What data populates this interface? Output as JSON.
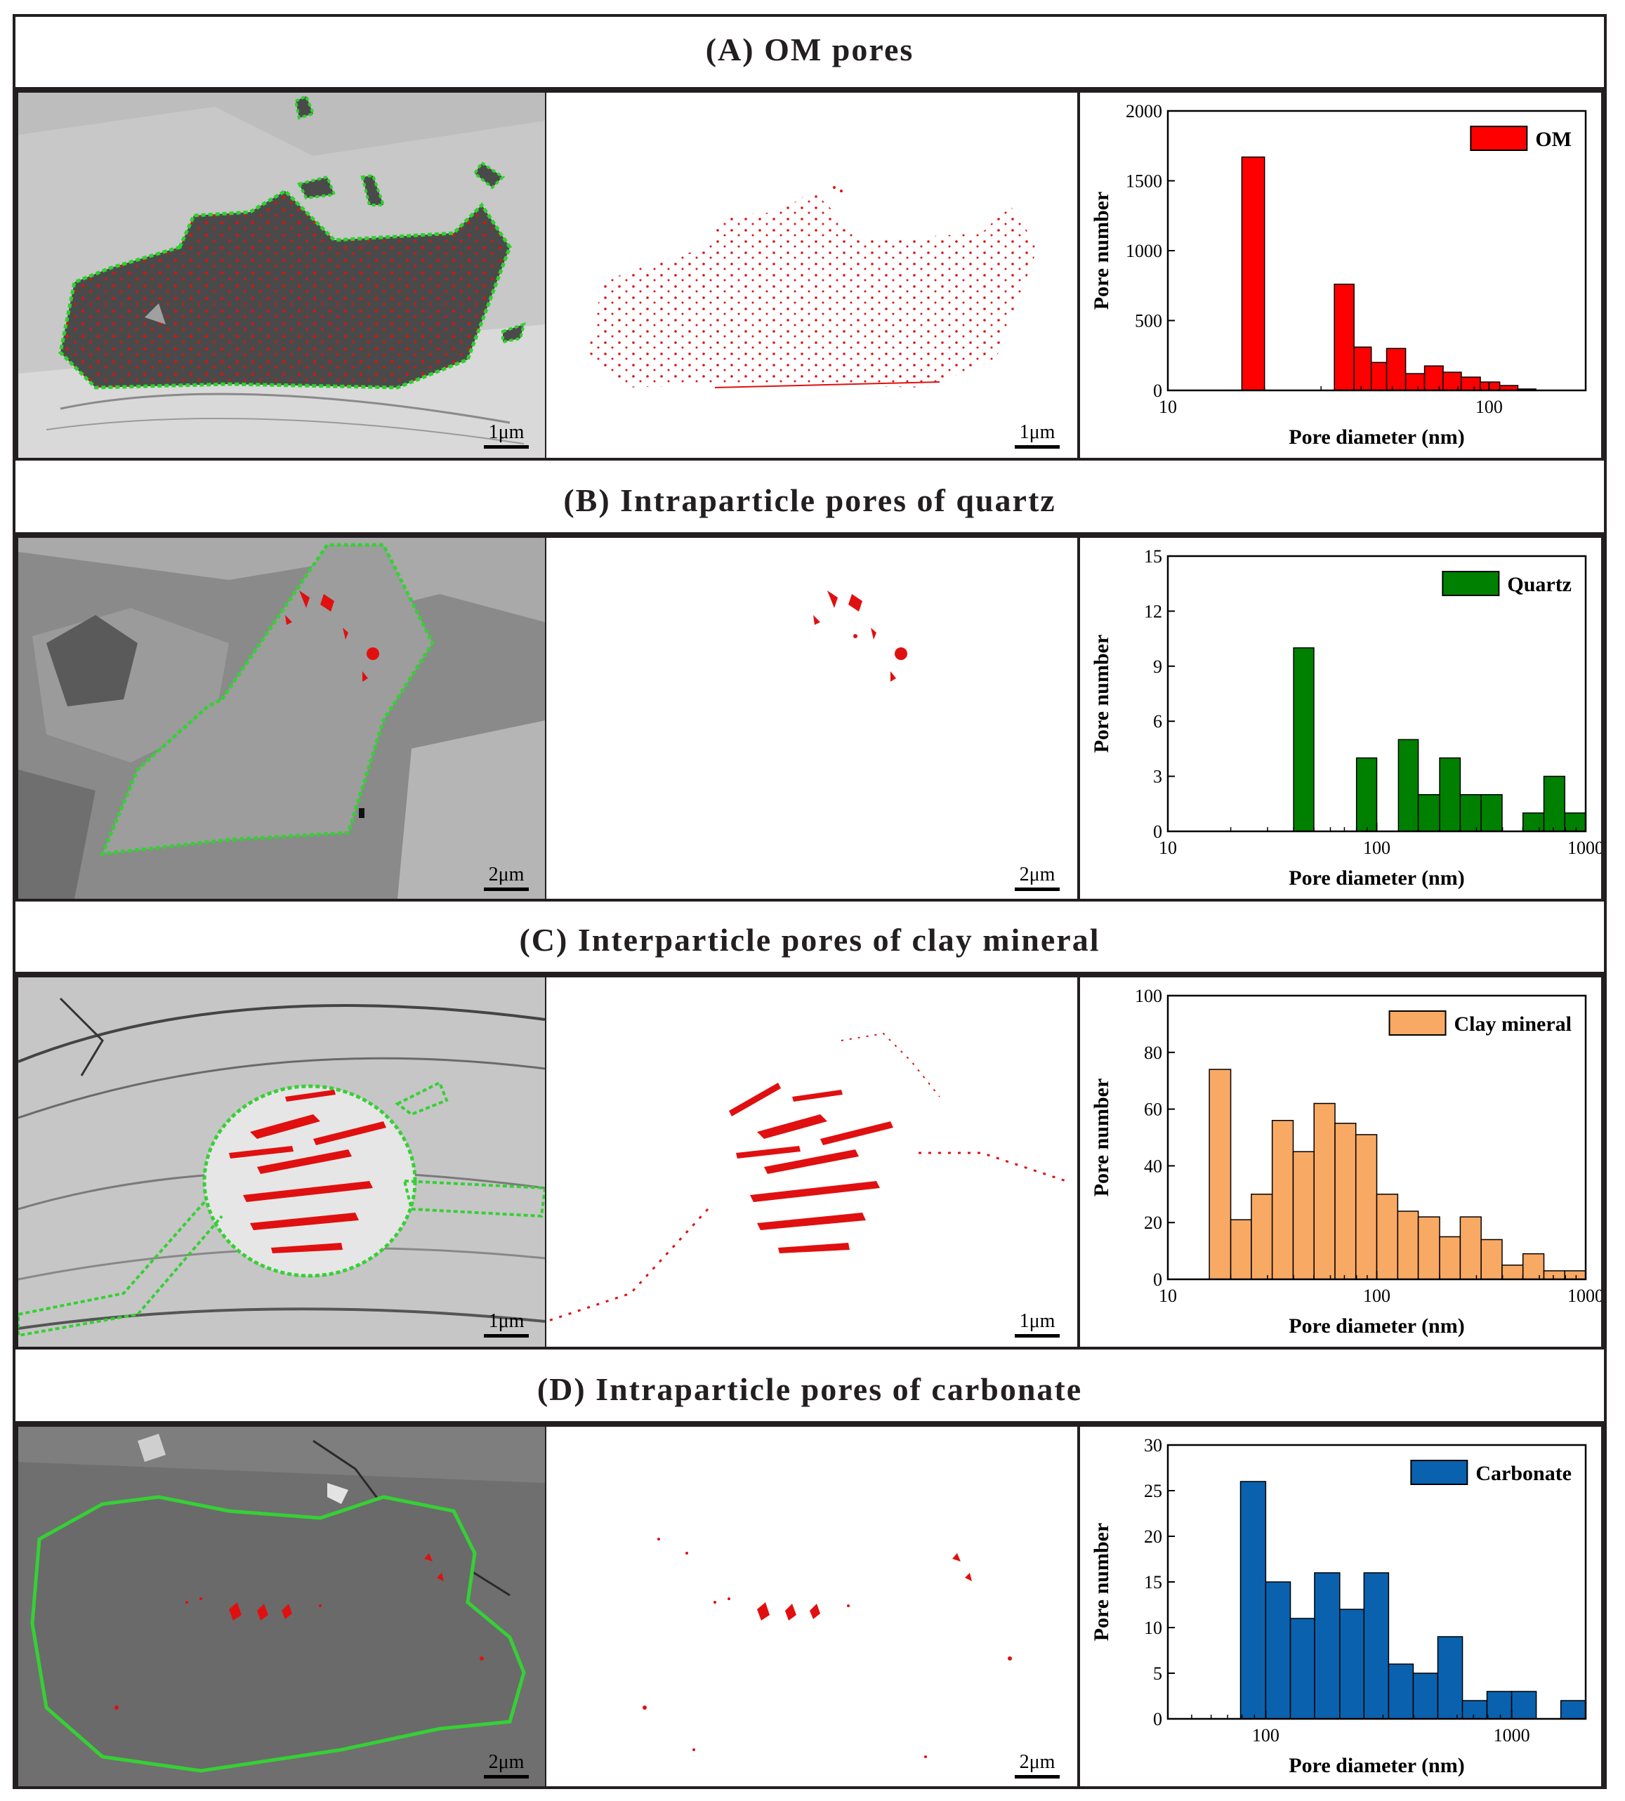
{
  "rows": [
    {
      "title": "(A) OM pores",
      "scale": "1μm"
    },
    {
      "title": "(B) Intraparticle pores of quartz",
      "scale": "2μm"
    },
    {
      "title": "(C) Interparticle pores of clay mineral",
      "scale": "1μm"
    },
    {
      "title": "(D) Intraparticle pores of carbonate",
      "scale": "2μm"
    }
  ],
  "chart_data": [
    {
      "type": "bar",
      "series_name": "OM",
      "color": "#ff0000",
      "xlabel": "Pore diameter (nm)",
      "ylabel": "Pore number",
      "xscale": "log",
      "xlim": [
        10,
        200
      ],
      "ylim": [
        0,
        2000
      ],
      "xticks": [
        10,
        100
      ],
      "yticks": [
        0,
        500,
        1000,
        1500,
        2000
      ],
      "bins": [
        [
          17,
          20,
          1670
        ],
        [
          33,
          38,
          760
        ],
        [
          38,
          43,
          310
        ],
        [
          43,
          48,
          200
        ],
        [
          48,
          55,
          300
        ],
        [
          55,
          63,
          120
        ],
        [
          63,
          72,
          175
        ],
        [
          72,
          82,
          130
        ],
        [
          82,
          94,
          95
        ],
        [
          94,
          108,
          60
        ],
        [
          108,
          123,
          35
        ],
        [
          123,
          140,
          10
        ]
      ]
    },
    {
      "type": "bar",
      "series_name": "Quartz",
      "color": "#008000",
      "xlabel": "Pore diameter (nm)",
      "ylabel": "Pore number",
      "xscale": "log",
      "xlim": [
        10,
        1000
      ],
      "ylim": [
        0,
        15
      ],
      "xticks": [
        10,
        100,
        1000
      ],
      "yticks": [
        0,
        3,
        6,
        9,
        12,
        15
      ],
      "bins": [
        [
          40,
          50,
          10
        ],
        [
          80,
          100,
          4
        ],
        [
          127,
          158,
          5
        ],
        [
          158,
          200,
          2
        ],
        [
          200,
          251,
          4
        ],
        [
          251,
          316,
          2
        ],
        [
          316,
          398,
          2
        ],
        [
          501,
          631,
          1
        ],
        [
          631,
          794,
          3
        ],
        [
          794,
          1000,
          1
        ]
      ]
    },
    {
      "type": "bar",
      "series_name": "Clay mineral",
      "color": "#f8a964",
      "xlabel": "Pore diameter (nm)",
      "ylabel": "Pore number",
      "xscale": "log",
      "xlim": [
        10,
        1000
      ],
      "ylim": [
        0,
        100
      ],
      "xticks": [
        10,
        100,
        1000
      ],
      "yticks": [
        0,
        20,
        40,
        60,
        80,
        100
      ],
      "bins": [
        [
          15.8,
          20,
          74
        ],
        [
          20,
          25.1,
          21
        ],
        [
          25.1,
          31.6,
          30
        ],
        [
          31.6,
          39.8,
          56
        ],
        [
          39.8,
          50.1,
          45
        ],
        [
          50.1,
          63.1,
          62
        ],
        [
          63.1,
          79.4,
          55
        ],
        [
          79.4,
          100,
          51
        ],
        [
          100,
          126,
          30
        ],
        [
          126,
          158,
          24
        ],
        [
          158,
          200,
          22
        ],
        [
          200,
          251,
          15
        ],
        [
          251,
          316,
          22
        ],
        [
          316,
          398,
          14
        ],
        [
          398,
          501,
          5
        ],
        [
          501,
          631,
          9
        ],
        [
          631,
          794,
          3
        ],
        [
          794,
          1000,
          3
        ]
      ]
    },
    {
      "type": "bar",
      "series_name": "Carbonate",
      "color": "#0a62ae",
      "xlabel": "Pore diameter (nm)",
      "ylabel": "Pore number",
      "xscale": "log",
      "xlim": [
        40,
        2000
      ],
      "ylim": [
        0,
        30
      ],
      "xticks": [
        100,
        1000
      ],
      "yticks": [
        0,
        5,
        10,
        15,
        20,
        25,
        30
      ],
      "bins": [
        [
          79,
          100,
          26
        ],
        [
          100,
          126,
          15
        ],
        [
          126,
          158,
          11
        ],
        [
          158,
          200,
          16
        ],
        [
          200,
          251,
          12
        ],
        [
          251,
          316,
          16
        ],
        [
          316,
          398,
          6
        ],
        [
          398,
          501,
          5
        ],
        [
          501,
          631,
          9
        ],
        [
          631,
          794,
          2
        ],
        [
          794,
          1000,
          3
        ],
        [
          1000,
          1259,
          3
        ],
        [
          1585,
          2000,
          2
        ]
      ]
    }
  ]
}
